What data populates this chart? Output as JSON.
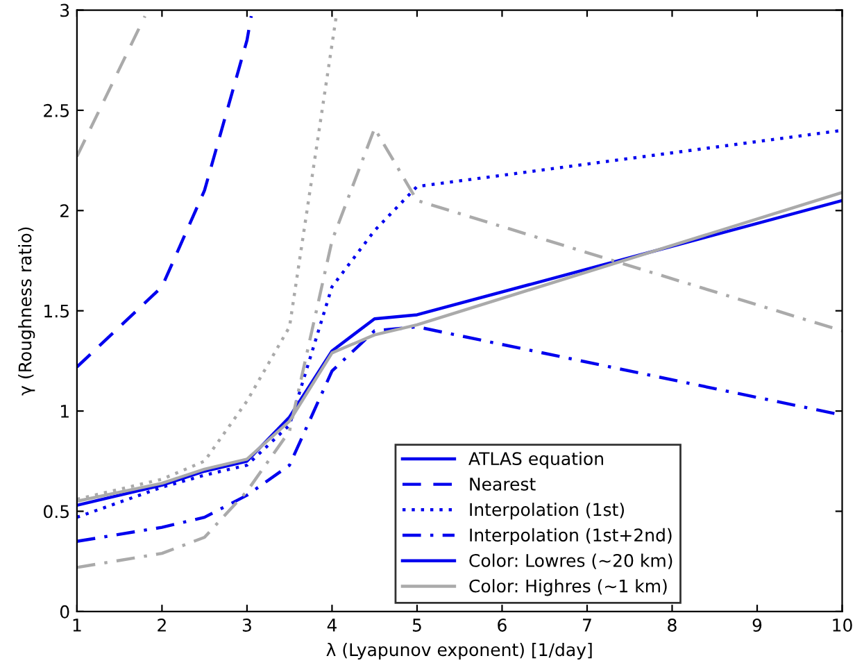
{
  "chart_data": {
    "type": "line",
    "xlabel": "λ (Lyapunov exponent) [1/day]",
    "ylabel": "γ (Roughness ratio)",
    "x": [
      1,
      2,
      2.5,
      3,
      3.5,
      4,
      4.5,
      5,
      10
    ],
    "xlim": [
      1,
      10
    ],
    "xticks": [
      1,
      2,
      3,
      4,
      5,
      6,
      7,
      8,
      9,
      10
    ],
    "ylim": [
      0,
      3
    ],
    "yticks": [
      0,
      0.5,
      1,
      1.5,
      2,
      2.5,
      3
    ],
    "grid": false,
    "legend": "bottom right",
    "marker": "none",
    "series": [
      {
        "name": "ATLAS equation",
        "color": "#0000ee",
        "line_style": "solid",
        "values": [
          0.53,
          0.63,
          0.7,
          0.75,
          0.97,
          1.3,
          1.46,
          1.48,
          2.05
        ]
      },
      {
        "name": "Nearest",
        "color": "#0000ee",
        "line_style": "dashed",
        "x": [
          1,
          2,
          2.5,
          3,
          3.05
        ],
        "values": [
          1.22,
          1.62,
          2.1,
          2.85,
          2.97
        ]
      },
      {
        "name": "Interpolation (1st)",
        "color": "#0000ee",
        "line_style": "dotted",
        "values": [
          0.47,
          0.62,
          0.68,
          0.73,
          0.93,
          1.62,
          1.9,
          2.12,
          2.4
        ]
      },
      {
        "name": "Interpolation (1st+2nd)",
        "color": "#0000ee",
        "line_style": "dashdot",
        "values": [
          0.35,
          0.42,
          0.47,
          0.58,
          0.73,
          1.2,
          1.4,
          1.42,
          0.98
        ]
      },
      {
        "name": "Color: Lowres (~20 km)",
        "color": "#0000ee",
        "line_style": "solid",
        "values": [
          null,
          null,
          null,
          null,
          null,
          null,
          null,
          null,
          null
        ]
      },
      {
        "name": "Color: Highres (~1 km)",
        "color": "#aaaaaa",
        "line_style": "solid",
        "values": [
          0.55,
          0.64,
          0.71,
          0.76,
          0.95,
          1.29,
          1.38,
          1.43,
          2.09
        ]
      },
      {
        "color": "#aaaaaa",
        "line_style": "dashed",
        "x": [
          1,
          1.8
        ],
        "values": [
          2.27,
          2.97
        ]
      },
      {
        "color": "#aaaaaa",
        "line_style": "dotted",
        "x": [
          1,
          2,
          2.5,
          3,
          3.5,
          4.05
        ],
        "values": [
          0.56,
          0.66,
          0.75,
          1.05,
          1.42,
          2.97
        ]
      },
      {
        "color": "#aaaaaa",
        "line_style": "dashdot",
        "values": [
          0.22,
          0.29,
          0.37,
          0.6,
          0.9,
          1.85,
          2.41,
          2.05,
          1.4
        ]
      }
    ]
  }
}
